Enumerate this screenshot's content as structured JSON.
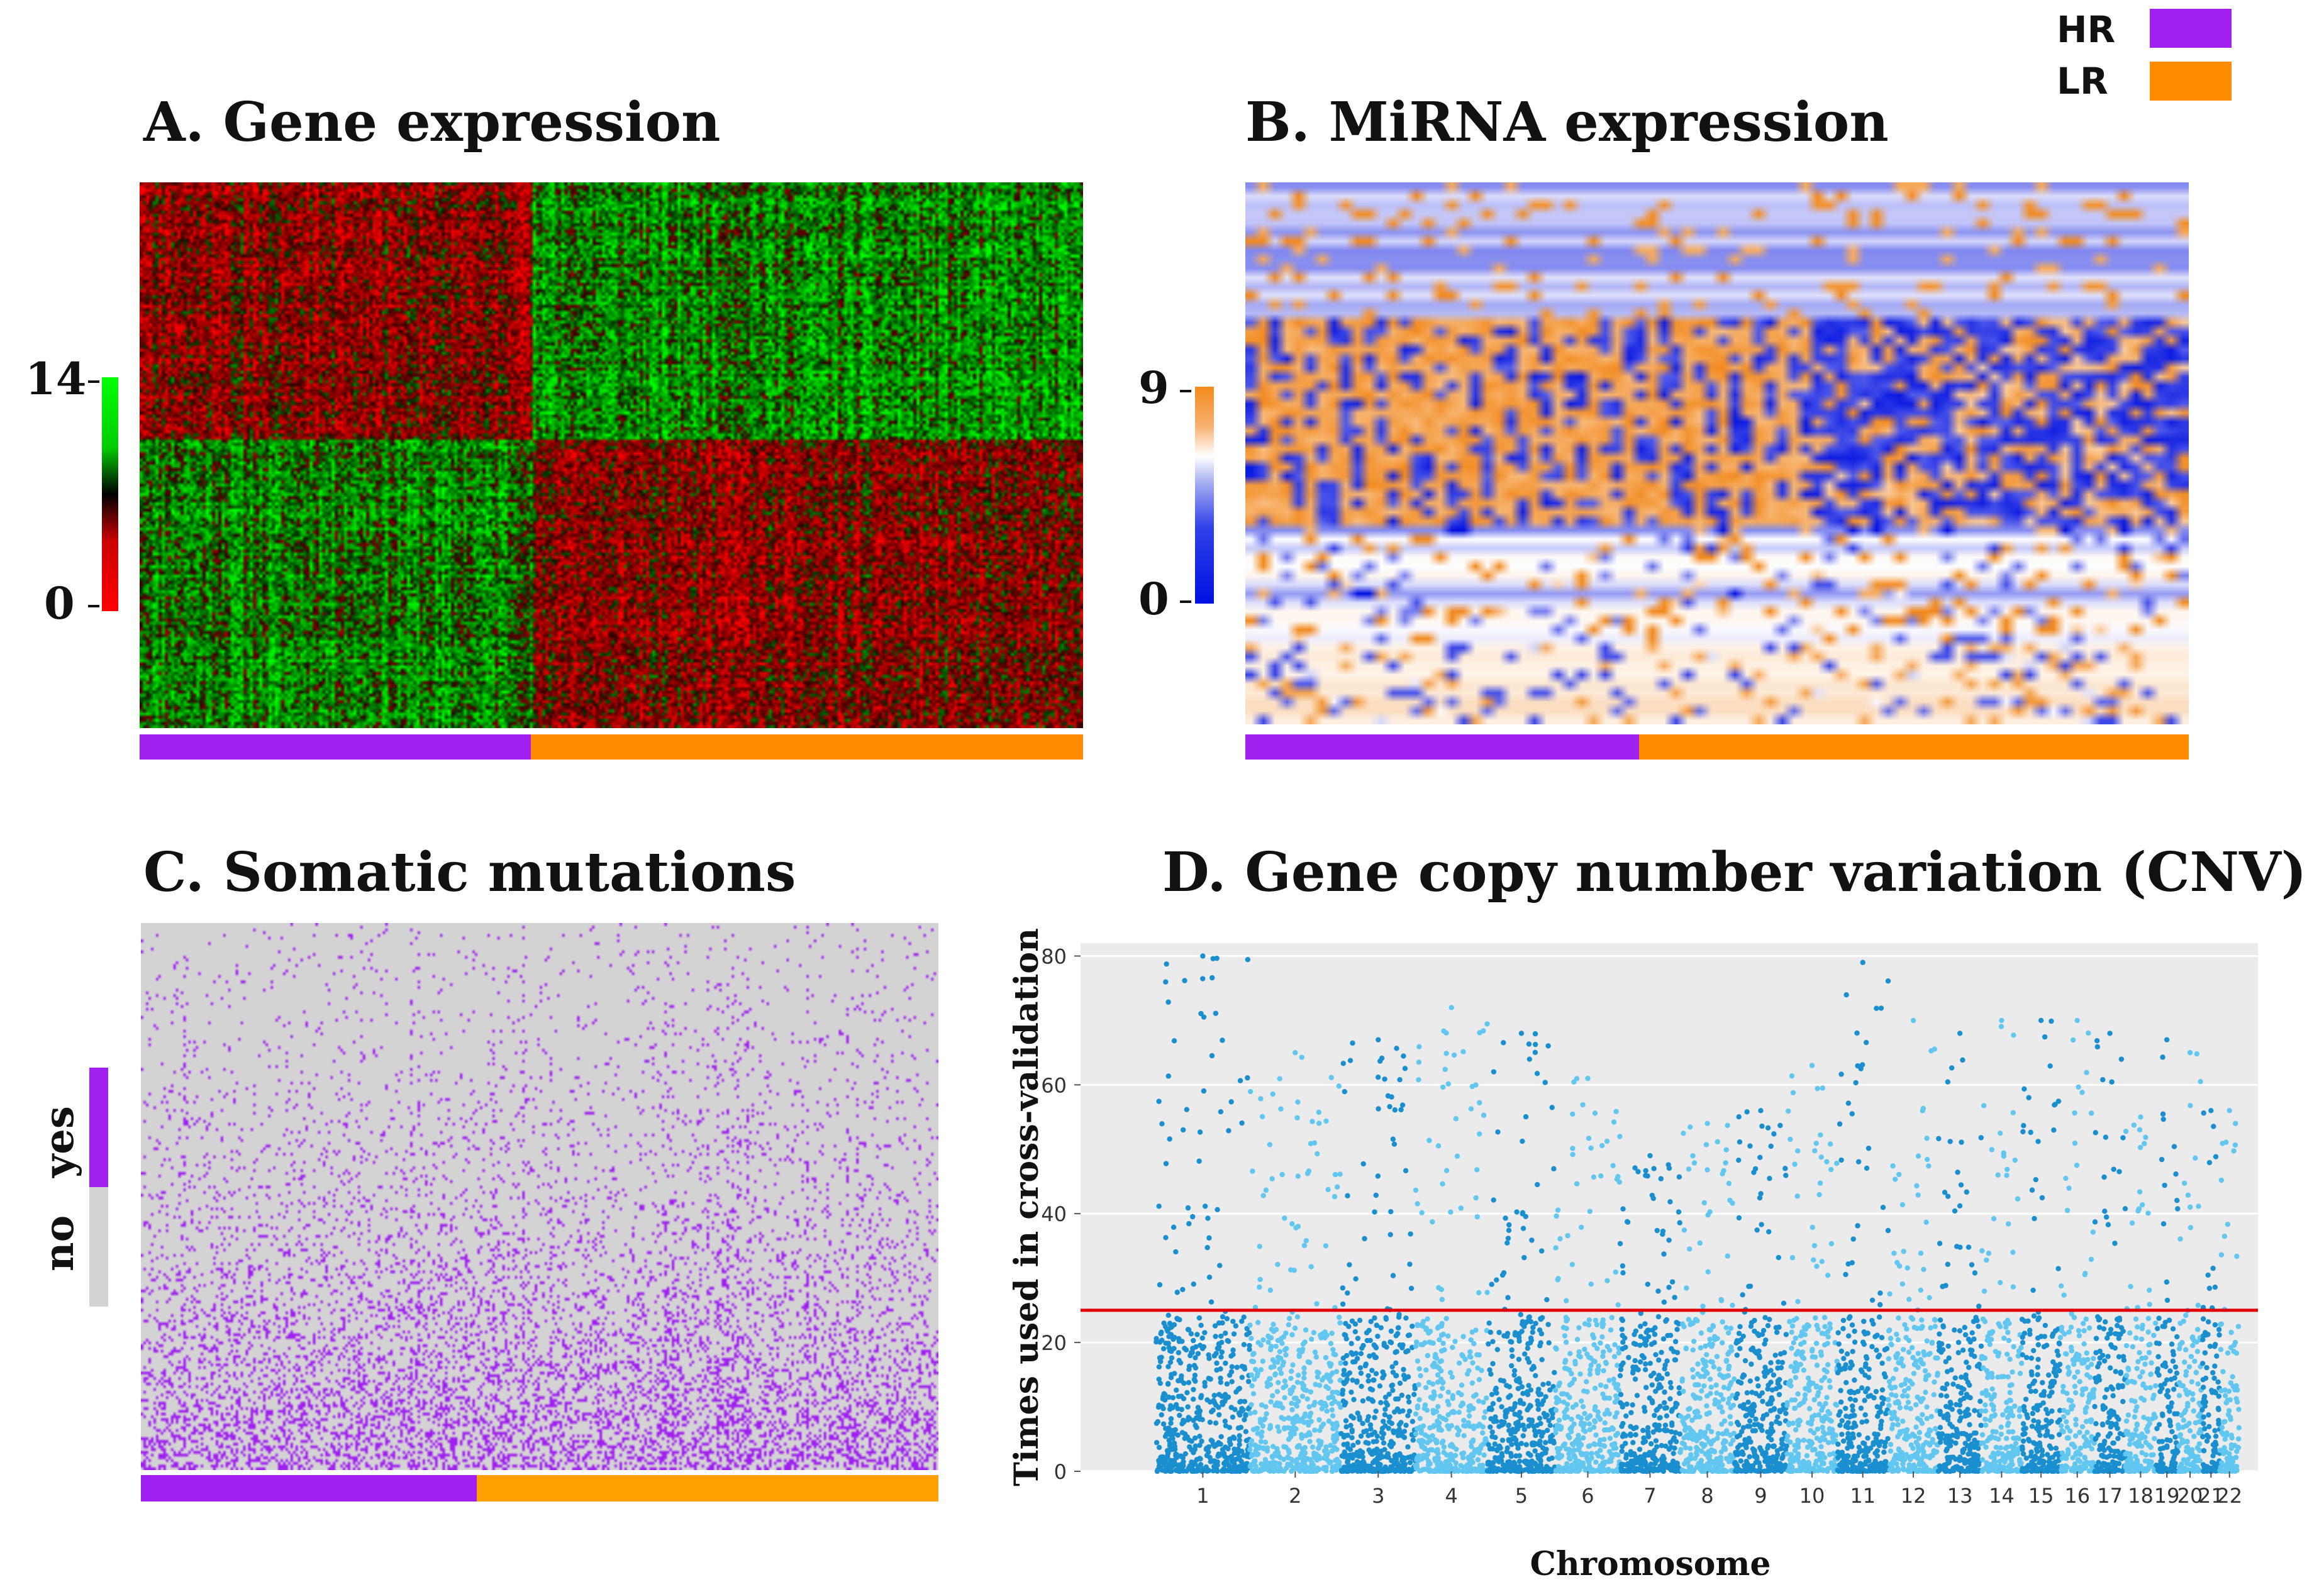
{
  "legend": {
    "hr_label": "HR",
    "lr_label": "LR",
    "hr_color": "#a020f0",
    "lr_color": "#ff8c00"
  },
  "panel_a": {
    "title": "A. Gene expression",
    "scale_high": "14",
    "scale_low": "0",
    "colors": {
      "high": "#00ee00",
      "mid": "#000000",
      "low": "#ff0000"
    },
    "group_split": {
      "hr_fraction": 0.415,
      "lr_fraction": 0.585
    }
  },
  "panel_b": {
    "title": "B. MiRNA expression",
    "scale_high": "9",
    "scale_low": "0",
    "colors": {
      "high": "#f28a1e",
      "mid": "#ffffff",
      "low": "#0010e0"
    },
    "group_split": {
      "hr_fraction": 0.417,
      "lr_fraction": 0.583
    }
  },
  "panel_c": {
    "title": "C. Somatic mutations",
    "scale_yes": "yes",
    "scale_no": "no",
    "colors": {
      "yes": "#a020f0",
      "no": "#d3d3d3"
    },
    "group_split": {
      "hr_fraction": 0.42,
      "lr_fraction": 0.58
    }
  },
  "panel_d": {
    "title": "D. Gene copy number variation (CNV)"
  },
  "chart_data": {
    "type": "scatter",
    "title": "D. Gene copy number variation (CNV)",
    "xlabel": "Chromosome",
    "ylabel": "Times  used in cross-validation",
    "ylim": [
      0,
      82
    ],
    "yticks": [
      0,
      20,
      40,
      60,
      80
    ],
    "threshold": 25,
    "threshold_color": "#e00000",
    "grid": true,
    "background": "#ebebeb",
    "point_colors": [
      "#1a8fd0",
      "#62c7f0"
    ],
    "chromosomes": [
      "1",
      "2",
      "3",
      "4",
      "5",
      "6",
      "7",
      "8",
      "9",
      "10",
      "11",
      "12",
      "13",
      "14",
      "15",
      "16",
      "17",
      "18",
      "19",
      "20",
      "21",
      "22"
    ],
    "chromosome_max": [
      80,
      65,
      67,
      72,
      68,
      61,
      49,
      54,
      56,
      63,
      79,
      70,
      68,
      70,
      70,
      70,
      68,
      55,
      67,
      65,
      56,
      56
    ]
  }
}
